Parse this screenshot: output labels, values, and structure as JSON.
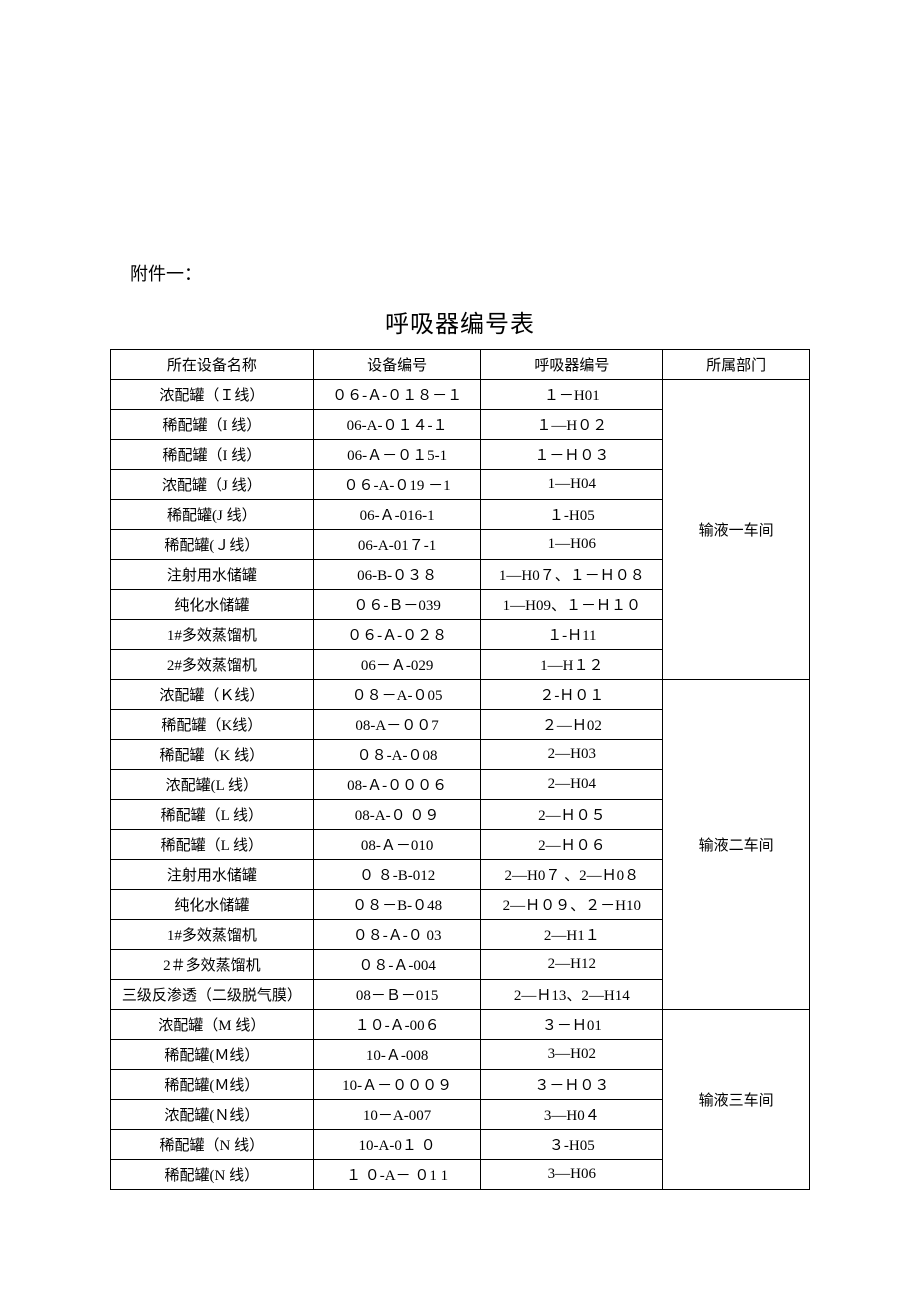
{
  "attachment_label": "附件一：",
  "title": "呼吸器编号表",
  "headers": {
    "equipment_name": "所在设备名称",
    "equipment_code": "设备编号",
    "breather_code": "呼吸器编号",
    "department": "所属部门"
  },
  "groups": [
    {
      "department": "输液一车间",
      "rows": [
        {
          "name": "浓配罐（Ｉ线）",
          "code": "０６-Ａ-０１８－１",
          "breather": "１－H01"
        },
        {
          "name": "稀配罐（I 线）",
          "code": "06-A-０１４-１",
          "breather": "１—H０２"
        },
        {
          "name": "稀配罐（I 线）",
          "code": "06-Ａ－０１5-1",
          "breather": "１－Ｈ０３"
        },
        {
          "name": "浓配罐（J 线）",
          "code": "０６-A-０19 －1",
          "breather": "1—H04"
        },
        {
          "name": "稀配罐(J 线）",
          "code": "06-Ａ-016-1",
          "breather": "１-H05"
        },
        {
          "name": "稀配罐(Ｊ线）",
          "code": "06-A-01７-1",
          "breather": "1—H06"
        },
        {
          "name": "注射用水储罐",
          "code": "06-B-０３８",
          "breather": "1—H0７、１－Ｈ０８"
        },
        {
          "name": "纯化水储罐",
          "code": "０６-Ｂ－039",
          "breather": "1—H09、１－Ｈ１０"
        },
        {
          "name": "1#多效蒸馏机",
          "code": "０６-Ａ-０２８",
          "breather": "１-Ｈ11"
        },
        {
          "name": "2#多效蒸馏机",
          "code": "06－Ａ-029",
          "breather": "1—H１２"
        }
      ]
    },
    {
      "department": "输液二车间",
      "rows": [
        {
          "name": "浓配罐（Ｋ线）",
          "code": "０８－A-０05",
          "breather": "２-Ｈ０１"
        },
        {
          "name": "稀配罐（K线）",
          "code": "08-A－００7",
          "breather": "２—Ｈ02"
        },
        {
          "name": "稀配罐（K 线）",
          "code": "０８-A-０08",
          "breather": "2—H03"
        },
        {
          "name": "浓配罐(L 线）",
          "code": "08-Ａ-０００６",
          "breather": "2—H04"
        },
        {
          "name": "稀配罐（L 线）",
          "code": "08-A-０ ０９",
          "breather": "2—Ｈ０５"
        },
        {
          "name": "稀配罐（L 线）",
          "code": "08-Ａ－010",
          "breather": "2—Ｈ０６"
        },
        {
          "name": "注射用水储罐",
          "code": "０ ８-B-012",
          "breather": "2—H0７ 、2—Ｈ0８"
        },
        {
          "name": "纯化水储罐",
          "code": "０８－B-０48",
          "breather": "2—Ｈ０９、２－H10"
        },
        {
          "name": "1#多效蒸馏机",
          "code": "０８-Ａ-０ 03",
          "breather": "2—H1１"
        },
        {
          "name": "2＃多效蒸馏机",
          "code": "０８-Ａ-004",
          "breather": "2—H12"
        },
        {
          "name": "三级反渗透（二级脱气膜）",
          "code": "08－Ｂ－015",
          "breather": "2—Ｈ13、2—H14"
        }
      ]
    },
    {
      "department": "输液三车间",
      "rows": [
        {
          "name": "浓配罐（M 线）",
          "code": "１０-Ａ-00６",
          "breather": "３－Ｈ01"
        },
        {
          "name": "稀配罐(Ｍ线）",
          "code": "10-Ａ-008",
          "breather": "3—H02"
        },
        {
          "name": "稀配罐(Ｍ线）",
          "code": "10-Ａ－０００９",
          "breather": "３－Ｈ０３"
        },
        {
          "name": "浓配罐(Ｎ线）",
          "code": "10－A-007",
          "breather": "3—H0４"
        },
        {
          "name": "稀配罐（N 线）",
          "code": "10-A-0１ ０",
          "breather": "３-H05"
        },
        {
          "name": "稀配罐(N 线）",
          "code": "１ ０-A－ ０1 1",
          "breather": "3—H06"
        }
      ]
    }
  ],
  "styling": {
    "background_color": "#ffffff",
    "text_color": "#000000",
    "border_color": "#000000",
    "title_fontsize": 24,
    "cell_fontsize": 15,
    "label_fontsize": 18,
    "font_family": "SimSun"
  }
}
